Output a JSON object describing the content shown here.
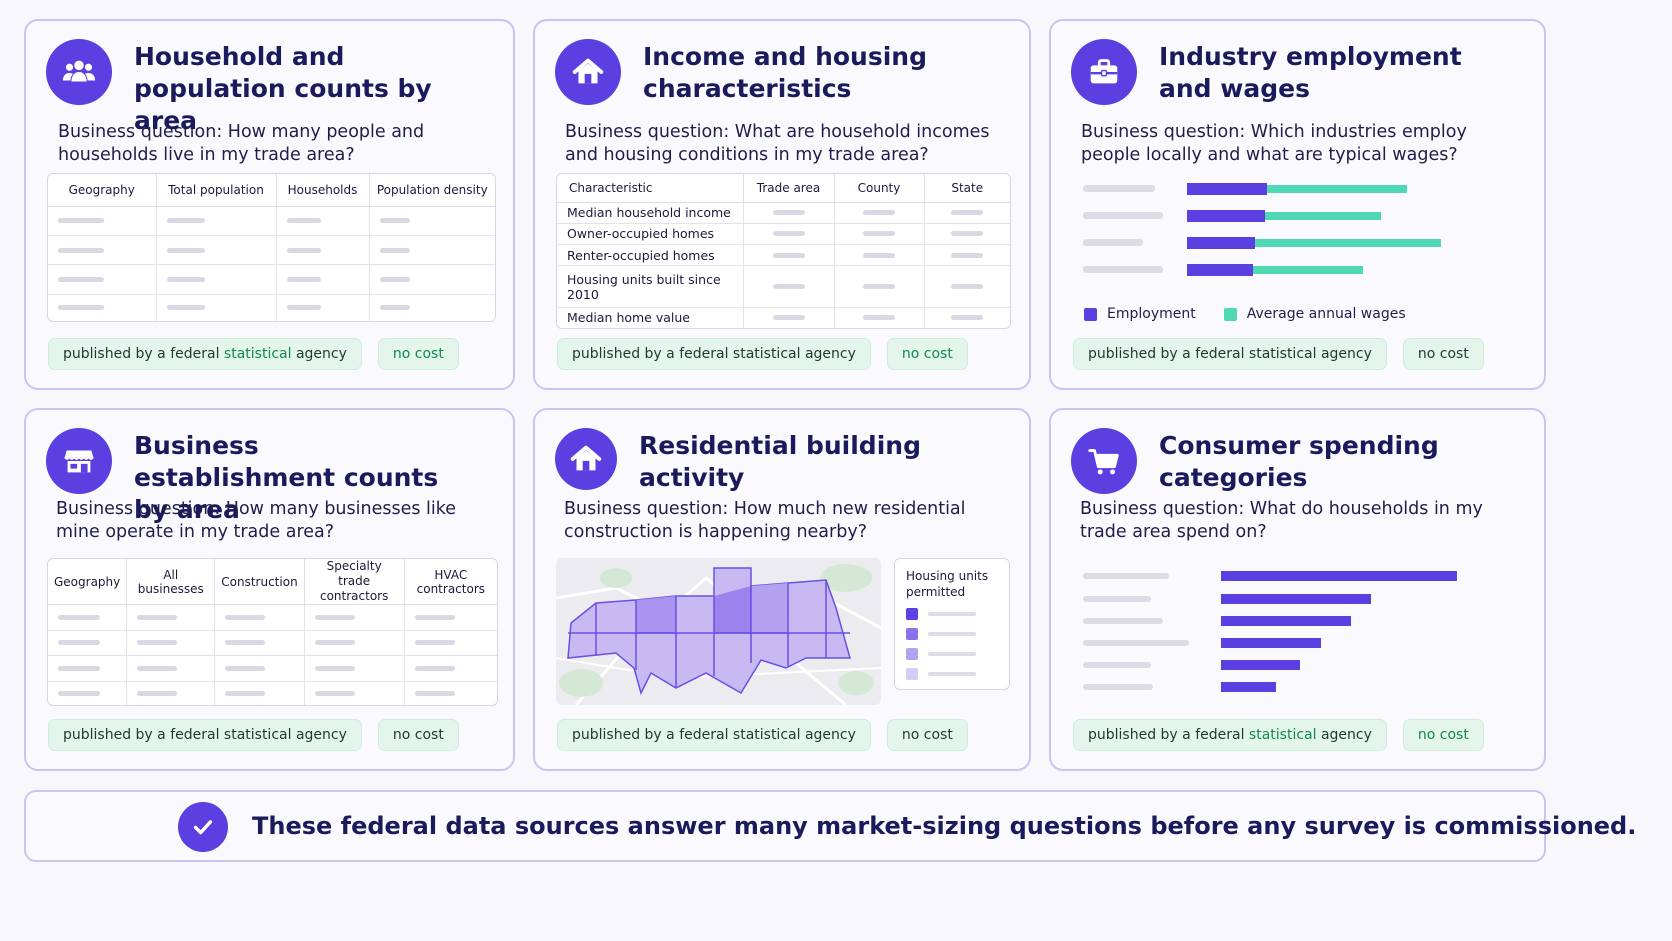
{
  "cards": [
    {
      "title": "Household and population counts by area",
      "question": "Business question: How many people and households live in my trade area?",
      "icon": "people-group-icon",
      "table_headers": [
        "Geography",
        "Total population",
        "Households",
        "Population density"
      ],
      "tag_published_prefix": "published by a federal ",
      "tag_published_highlight": "statistical",
      "tag_published_suffix": " agency",
      "tag_cost": "no cost"
    },
    {
      "title": "Income and housing characteristics",
      "question": "Business question: What are household incomes and housing conditions in my trade area?",
      "icon": "house-icon",
      "table_headers": [
        "Characteristic",
        "Trade area",
        "County",
        "State"
      ],
      "table_rows": [
        "Median household income",
        "Owner-occupied homes",
        "Renter-occupied homes",
        "Housing units built since 2010",
        "Median home value"
      ],
      "tag_published": "published by a federal statistical agency",
      "tag_cost": "no cost"
    },
    {
      "title": "Industry employment and wages",
      "question": "Business question: Which industries employ people locally and what are typical wages?",
      "icon": "briefcase-icon",
      "legend": [
        "Employment",
        "Average annual wages"
      ],
      "tag_published_prefix": "published by a federal statistical agency",
      "tag_cost": "no cost"
    },
    {
      "title": "Business establishment counts by area",
      "question": "Business question: How many businesses like mine operate in my trade area?",
      "icon": "storefront-icon",
      "table_headers": [
        "Geography",
        "All businesses",
        "Construction",
        "Specialty trade contractors",
        "HVAC contractors"
      ],
      "tag_published": "published by a federal statistical agency",
      "tag_cost": "no cost"
    },
    {
      "title": "Residential building activity",
      "question": "Business question: How much new residential construction is happening nearby?",
      "icon": "house-icon",
      "map_legend_title": "Housing units permitted",
      "tag_published": "published by a federal statistical agency",
      "tag_cost": "no cost"
    },
    {
      "title": "Consumer spending categories",
      "question": "Business question: What do households in my trade area spend on?",
      "icon": "shopping-cart-icon",
      "tag_published_prefix": "published by a federal ",
      "tag_published_highlight": "statistical",
      "tag_published_suffix": " agency",
      "tag_cost": "no cost"
    }
  ],
  "banner": {
    "text": "These federal data sources answer many market-sizing questions before any survey is commissioned.",
    "icon": "checkmark-icon"
  },
  "colors": {
    "accent": "#5b3fe0",
    "teal": "#4ed8b4",
    "tag_bg": "#e4f6ec",
    "tag_text_green": "#128a4f"
  }
}
